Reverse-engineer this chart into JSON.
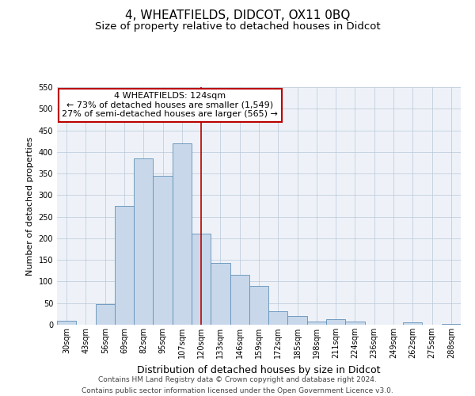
{
  "title": "4, WHEATFIELDS, DIDCOT, OX11 0BQ",
  "subtitle": "Size of property relative to detached houses in Didcot",
  "xlabel": "Distribution of detached houses by size in Didcot",
  "ylabel": "Number of detached properties",
  "bar_labels": [
    "30sqm",
    "43sqm",
    "56sqm",
    "69sqm",
    "82sqm",
    "95sqm",
    "107sqm",
    "120sqm",
    "133sqm",
    "146sqm",
    "159sqm",
    "172sqm",
    "185sqm",
    "198sqm",
    "211sqm",
    "224sqm",
    "236sqm",
    "249sqm",
    "262sqm",
    "275sqm",
    "288sqm"
  ],
  "bar_values": [
    10,
    0,
    48,
    275,
    385,
    345,
    420,
    210,
    143,
    115,
    90,
    31,
    20,
    8,
    12,
    8,
    0,
    0,
    5,
    0,
    2
  ],
  "bar_color": "#c8d8ea",
  "bar_edge_color": "#6090b8",
  "vline_color": "#bb0000",
  "annotation_title": "4 WHEATFIELDS: 124sqm",
  "annotation_line1": "← 73% of detached houses are smaller (1,549)",
  "annotation_line2": "27% of semi-detached houses are larger (565) →",
  "annotation_box_color": "#ffffff",
  "annotation_box_edge_color": "#bb0000",
  "ylim": [
    0,
    550
  ],
  "yticks": [
    0,
    50,
    100,
    150,
    200,
    250,
    300,
    350,
    400,
    450,
    500,
    550
  ],
  "background_color": "#eef2f8",
  "footer_line1": "Contains HM Land Registry data © Crown copyright and database right 2024.",
  "footer_line2": "Contains public sector information licensed under the Open Government Licence v3.0.",
  "title_fontsize": 11,
  "subtitle_fontsize": 9.5,
  "xlabel_fontsize": 9,
  "ylabel_fontsize": 8,
  "tick_fontsize": 7,
  "footer_fontsize": 6.5,
  "annotation_fontsize": 8
}
